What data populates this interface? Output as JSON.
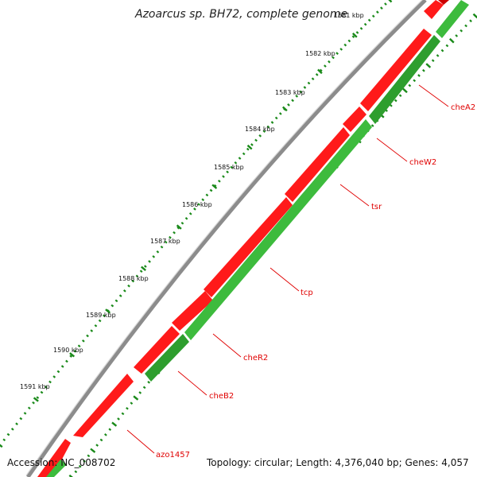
{
  "title": "Azoarcus sp. BH72, complete genome",
  "accession": "Accession: NC_008702",
  "summary": "Topology: circular; Length: 4,376,040 bp; Genes: 4,057",
  "ticks": [
    "1591 kbp",
    "1590 kbp",
    "1589 kbp",
    "1588 kbp",
    "1587 kbp",
    "1586 kbp",
    "1585 kbp",
    "1584 kbp",
    "1583 kbp",
    "1582 kbp",
    "1581 kbp"
  ],
  "genes": [
    "cheA2",
    "cheW2",
    "tsr",
    "tcp",
    "cheR2",
    "cheB2",
    "azo1457"
  ],
  "colors": {
    "backbone": "#8c8c8c",
    "forward_gene": "#ff1a1a",
    "reverse_gene": "#3dbb3d",
    "tick": "#1a8a1a",
    "label": "#e00000"
  }
}
